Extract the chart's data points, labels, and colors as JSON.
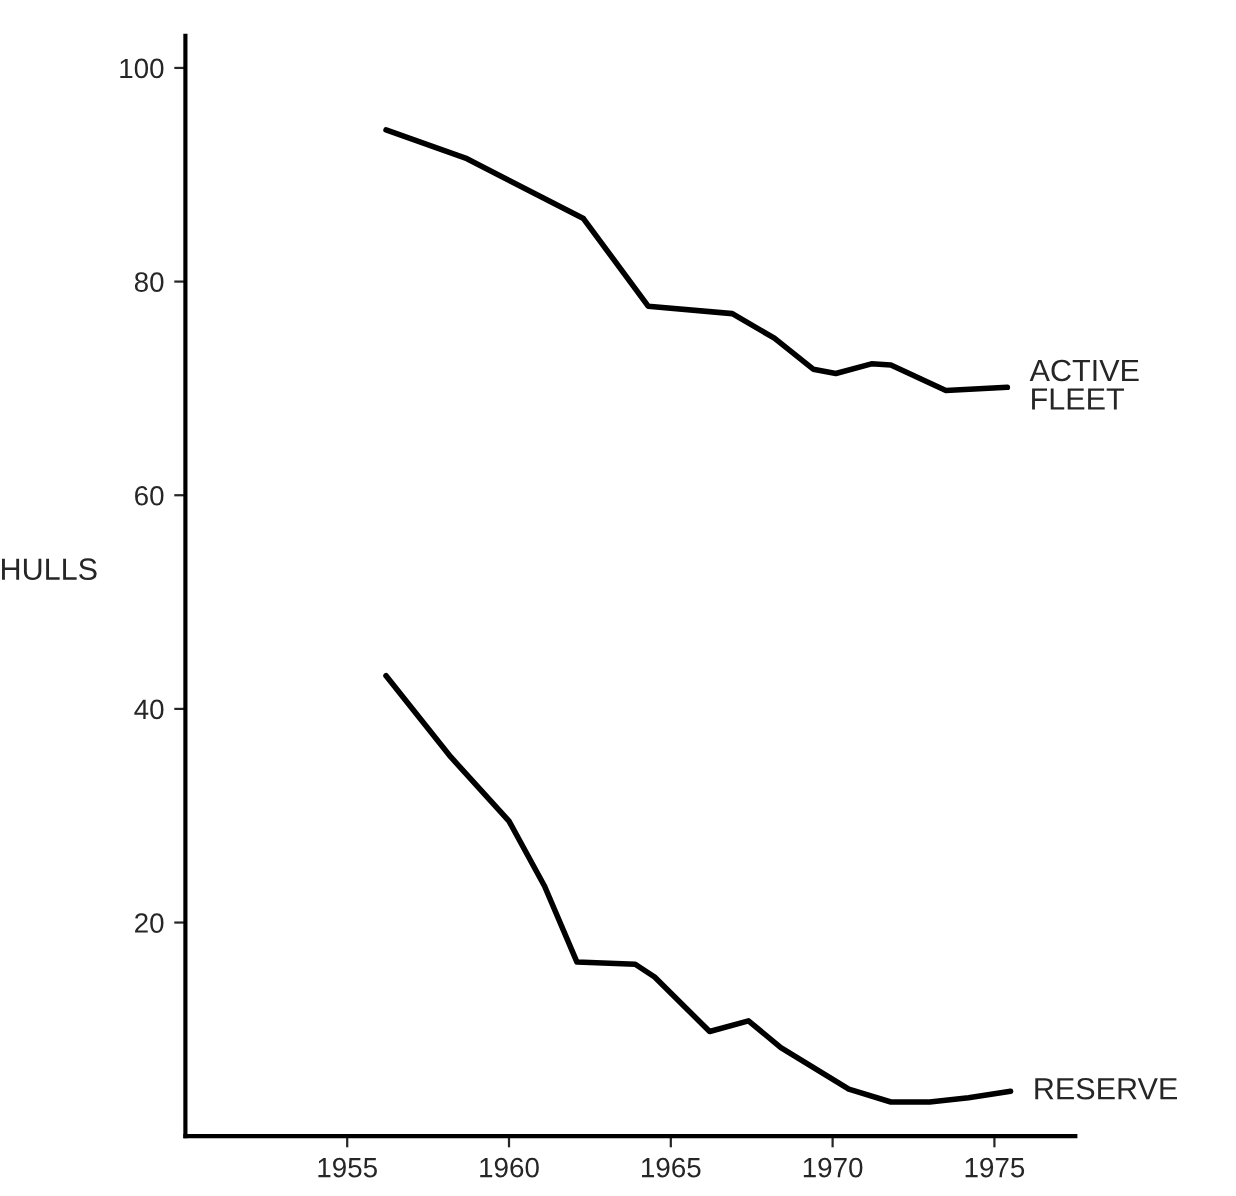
{
  "chart_data": {
    "type": "line",
    "ylabel": "HULLS",
    "xlim": [
      1950,
      1977.5
    ],
    "xticks": [
      1955,
      1960,
      1965,
      1970,
      1975
    ],
    "ylim": [
      0,
      103
    ],
    "yticks": [
      20,
      40,
      60,
      80,
      100
    ],
    "grid": false,
    "legend": false,
    "marker": "none",
    "line_style": "solid",
    "series": [
      {
        "name": "ACTIVE\nFLEET",
        "color": "#000000",
        "x": [
          1956.2,
          1958.7,
          1962.3,
          1964.3,
          1966.9,
          1968.2,
          1969.4,
          1970.1,
          1971.2,
          1971.8,
          1973.5,
          1975.4
        ],
        "values": [
          94.2,
          91.5,
          85.9,
          77.7,
          77.0,
          74.7,
          71.8,
          71.4,
          72.3,
          72.2,
          69.8,
          70.1
        ]
      },
      {
        "name": "RESERVE",
        "color": "#000000",
        "x": [
          1956.2,
          1958.2,
          1960,
          1961.1,
          1962.1,
          1963.9,
          1964.5,
          1966.2,
          1967.4,
          1968.4,
          1970.5,
          1971.8,
          1973,
          1974.2,
          1975.5
        ],
        "values": [
          43.1,
          35.5,
          29.5,
          23.4,
          16.3,
          16.1,
          14.9,
          9.8,
          10.8,
          8.3,
          4.4,
          3.2,
          3.2,
          3.6,
          4.2
        ]
      }
    ]
  }
}
